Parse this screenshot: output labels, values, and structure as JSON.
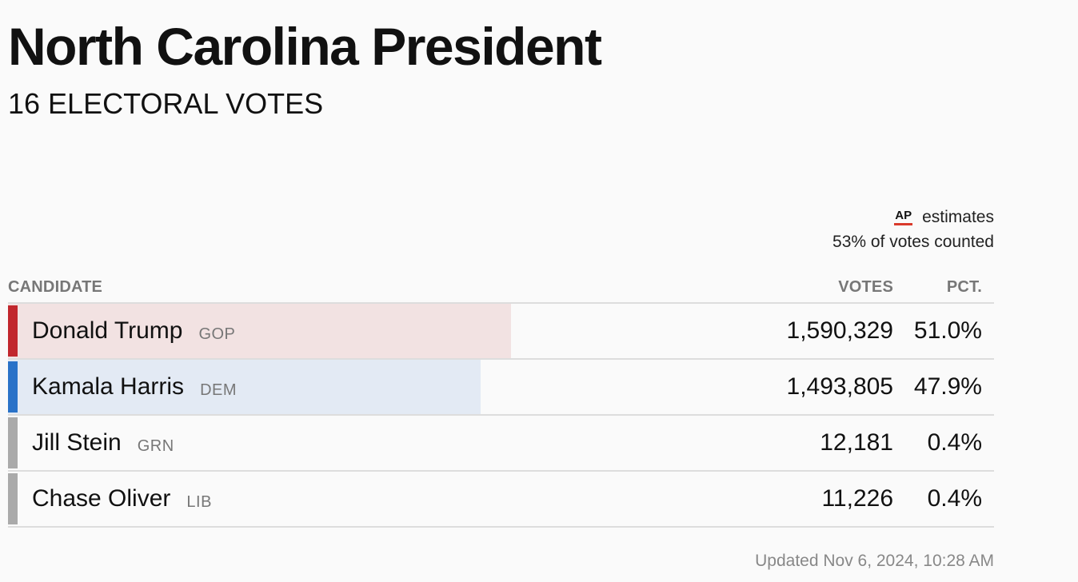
{
  "header": {
    "title": "North Carolina President",
    "subtitle": "16 ELECTORAL VOTES"
  },
  "source": {
    "logo_text": "AP",
    "estimates_label": "estimates",
    "counted_text": "53% of votes counted"
  },
  "table": {
    "headers": {
      "candidate": "CANDIDATE",
      "votes": "VOTES",
      "pct": "PCT."
    },
    "rows": [
      {
        "name": "Donald Trump",
        "party": "GOP",
        "votes": "1,590,329",
        "pct": "51.0%",
        "share": 0.51,
        "stripe_color": "#c1272d",
        "fill_color": "#f2e2e2"
      },
      {
        "name": "Kamala Harris",
        "party": "DEM",
        "votes": "1,493,805",
        "pct": "47.9%",
        "share": 0.479,
        "stripe_color": "#2a72c8",
        "fill_color": "#e3eaf4"
      },
      {
        "name": "Jill Stein",
        "party": "GRN",
        "votes": "12,181",
        "pct": "0.4%",
        "share": 0.004,
        "stripe_color": "#aaaaaa",
        "fill_color": "#eeeeee"
      },
      {
        "name": "Chase Oliver",
        "party": "LIB",
        "votes": "11,226",
        "pct": "0.4%",
        "share": 0.004,
        "stripe_color": "#aaaaaa",
        "fill_color": "#eeeeee"
      }
    ]
  },
  "footer": {
    "updated": "Updated Nov 6, 2024, 10:28 AM"
  }
}
